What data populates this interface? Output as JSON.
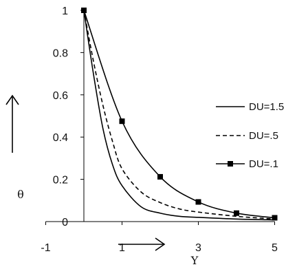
{
  "chart_data": {
    "type": "line",
    "xlabel": "Y",
    "ylabel": "θ",
    "xlim": [
      -1,
      5
    ],
    "ylim": [
      0,
      1
    ],
    "x_ticks": [
      "-1",
      "1",
      "3",
      "5"
    ],
    "y_ticks": [
      "0",
      "0.2",
      "0.4",
      "0.6",
      "0.8",
      "1"
    ],
    "grid": false,
    "legend_position": "right",
    "series": [
      {
        "name": "DU=1.5",
        "style": "solid",
        "marker": "none",
        "color": "#000000",
        "x": [
          0,
          0.25,
          0.5,
          0.75,
          1,
          1.5,
          2,
          2.5,
          3,
          4,
          5
        ],
        "y": [
          1,
          0.7,
          0.44,
          0.27,
          0.17,
          0.07,
          0.04,
          0.025,
          0.02,
          0.012,
          0.008
        ]
      },
      {
        "name": "DU=.5",
        "style": "dashed",
        "marker": "none",
        "color": "#000000",
        "x": [
          0,
          0.25,
          0.5,
          0.75,
          1,
          1.5,
          2,
          2.5,
          3,
          4,
          5
        ],
        "y": [
          1,
          0.76,
          0.55,
          0.38,
          0.25,
          0.14,
          0.09,
          0.06,
          0.045,
          0.025,
          0.012
        ]
      },
      {
        "name": "DU=.1",
        "style": "solid",
        "marker": "square",
        "color": "#000000",
        "x": [
          0,
          1,
          2,
          3,
          4,
          5
        ],
        "y": [
          1,
          0.475,
          0.212,
          0.093,
          0.04,
          0.018
        ]
      }
    ]
  }
}
